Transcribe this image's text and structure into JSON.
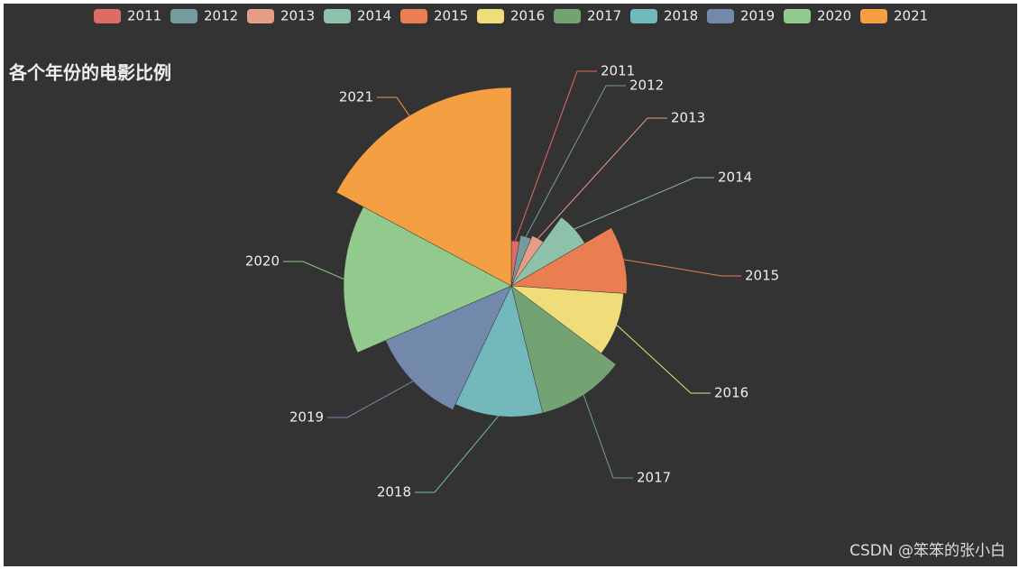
{
  "chart_data": {
    "type": "pie",
    "rose": true,
    "title": "各个年份的电影比例",
    "categories": [
      "2011",
      "2012",
      "2013",
      "2014",
      "2015",
      "2016",
      "2017",
      "2018",
      "2019",
      "2020",
      "2021"
    ],
    "values": [
      10,
      12,
      13,
      23,
      33,
      32,
      38,
      38,
      40,
      50,
      60
    ],
    "colors": [
      "#dd6b66",
      "#759aa0",
      "#e69d87",
      "#8dc1a9",
      "#ea7e53",
      "#eedd78",
      "#73a373",
      "#73b9bc",
      "#7289ab",
      "#91ca8c",
      "#f49f42"
    ],
    "legend": "top"
  },
  "watermark": "CSDN @笨笨的张小白"
}
